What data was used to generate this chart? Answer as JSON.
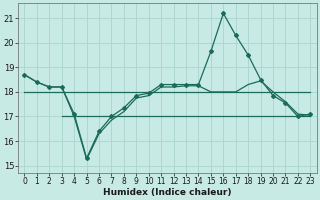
{
  "xlabel": "Humidex (Indice chaleur)",
  "xlim": [
    -0.5,
    23.5
  ],
  "ylim": [
    14.7,
    21.6
  ],
  "yticks": [
    15,
    16,
    17,
    18,
    19,
    20,
    21
  ],
  "xticks": [
    0,
    1,
    2,
    3,
    4,
    5,
    6,
    7,
    8,
    9,
    10,
    11,
    12,
    13,
    14,
    15,
    16,
    17,
    18,
    19,
    20,
    21,
    22,
    23
  ],
  "bg_color": "#c8eae4",
  "grid_color": "#aad4cc",
  "line_color": "#1a6b5a",
  "main_x": [
    0,
    1,
    2,
    3,
    4,
    5,
    6,
    7,
    8,
    9,
    10,
    11,
    12,
    13,
    14,
    15,
    16,
    17,
    18,
    19,
    20,
    21,
    22,
    23
  ],
  "main_y": [
    18.7,
    18.4,
    18.2,
    18.2,
    17.1,
    15.3,
    16.4,
    17.0,
    17.35,
    17.85,
    17.95,
    18.3,
    18.3,
    18.3,
    18.3,
    19.65,
    21.2,
    20.3,
    19.5,
    18.5,
    17.85,
    17.55,
    17.0,
    17.1
  ],
  "smooth_x": [
    0,
    1,
    2,
    3,
    4,
    5,
    6,
    7,
    8,
    9,
    10,
    11,
    12,
    13,
    14,
    15,
    16,
    17,
    18,
    19,
    20,
    21,
    22,
    23
  ],
  "smooth_y": [
    18.7,
    18.4,
    18.2,
    18.2,
    17.0,
    15.25,
    16.3,
    16.85,
    17.2,
    17.75,
    17.85,
    18.2,
    18.2,
    18.25,
    18.25,
    18.0,
    18.0,
    18.0,
    18.3,
    18.45,
    18.0,
    17.6,
    17.1,
    17.05
  ],
  "hline1_y": 18.0,
  "hline1_xstart": 0,
  "hline2_y": 17.0,
  "hline2_xstart": 3
}
